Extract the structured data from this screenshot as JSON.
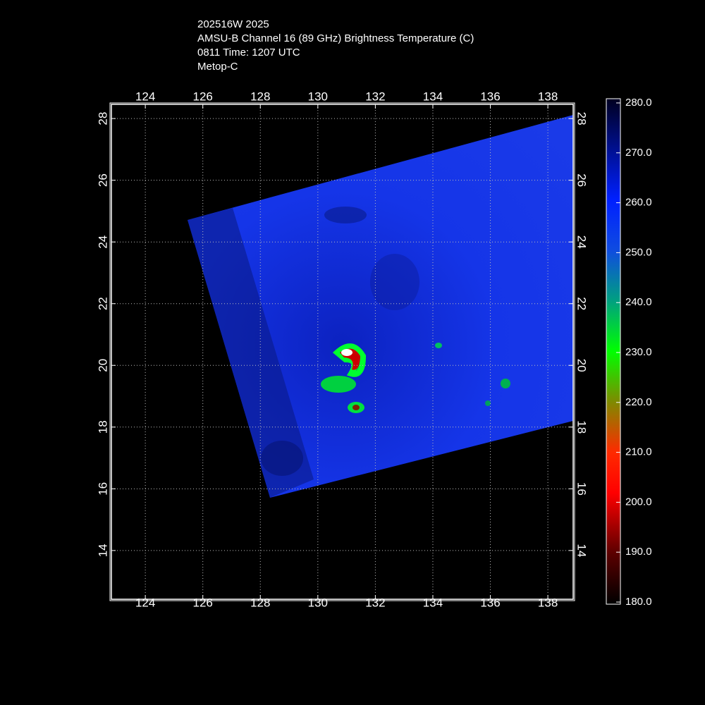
{
  "header": {
    "lines": [
      "202516W 2025",
      "AMSU-B Channel 16 (89 GHz) Brightness Temperature (C)",
      "0811 Time: 1207 UTC",
      "Metop-C"
    ]
  },
  "map": {
    "xlim": [
      122.82,
      138.88
    ],
    "ylim": [
      12.42,
      28.46
    ],
    "xticks": [
      124,
      126,
      128,
      130,
      132,
      134,
      136,
      138
    ],
    "yticks": [
      14,
      16,
      18,
      20,
      22,
      24,
      26,
      28
    ]
  },
  "colorbar": {
    "range": [
      180,
      280
    ],
    "ticks": [
      {
        "value": 180,
        "label": "180.0"
      },
      {
        "value": 190,
        "label": "190.0"
      },
      {
        "value": 200,
        "label": "200.0"
      },
      {
        "value": 210,
        "label": "210.0"
      },
      {
        "value": 220,
        "label": "220.0"
      },
      {
        "value": 230,
        "label": "230.0"
      },
      {
        "value": 240,
        "label": "240.0"
      },
      {
        "value": 250,
        "label": "250.0"
      },
      {
        "value": 260,
        "label": "260.0"
      },
      {
        "value": 270,
        "label": "270.0"
      },
      {
        "value": 280,
        "label": "280.0"
      }
    ]
  }
}
